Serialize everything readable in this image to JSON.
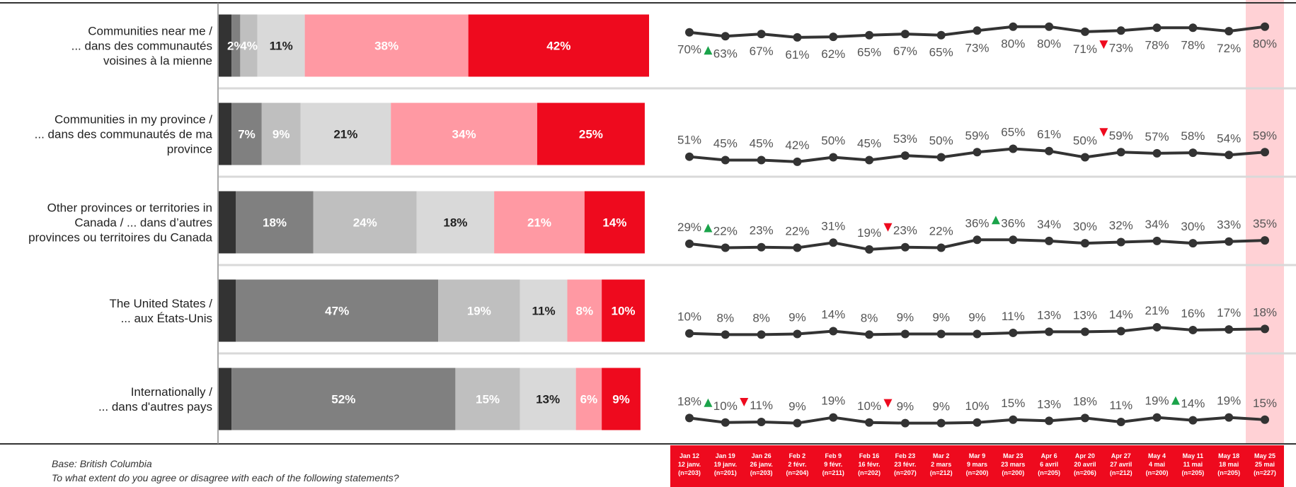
{
  "chart_data": [
    {
      "type": "bar",
      "stacked": true,
      "orientation": "horizontal",
      "xlim": [
        0,
        100
      ],
      "categories": [
        [
          "Communities near me /",
          "... dans des communautés",
          "voisines à la mienne"
        ],
        [
          "Communities in my province /",
          "... dans des communautés de ma",
          "province"
        ],
        [
          "Other provinces or territories in",
          "Canada / ... dans d’autres",
          "provinces ou territoires du Canada"
        ],
        [
          "The United States /",
          "... aux États-Unis"
        ],
        [
          "Internationally /",
          "... dans d'autres pays"
        ]
      ],
      "series": [
        {
          "color": "#333333",
          "label_color": "#ffffff",
          "values": [
            3,
            3,
            4,
            4,
            3
          ]
        },
        {
          "color": "#808080",
          "label_color": "#ffffff",
          "values": [
            2,
            7,
            18,
            47,
            52
          ]
        },
        {
          "color": "#bfbfbf",
          "label_color": "#ffffff",
          "values": [
            4,
            9,
            24,
            19,
            15
          ]
        },
        {
          "color": "#d9d9d9",
          "label_color": "#222222",
          "values": [
            11,
            21,
            18,
            11,
            13
          ]
        },
        {
          "color": "#ff99a3",
          "label_color": "#ffffff",
          "values": [
            38,
            34,
            21,
            8,
            6
          ]
        },
        {
          "color": "#ee0a1e",
          "label_color": "#ffffff",
          "values": [
            42,
            25,
            14,
            10,
            9
          ]
        }
      ],
      "labels": [
        [
          "",
          "2%",
          "4%",
          "11%",
          "38%",
          "42%"
        ],
        [
          "",
          "7%",
          "9%",
          "21%",
          "34%",
          "25%"
        ],
        [
          "",
          "18%",
          "24%",
          "18%",
          "21%",
          "14%"
        ],
        [
          "",
          "47%",
          "19%",
          "11%",
          "8%",
          "10%"
        ],
        [
          "",
          "52%",
          "15%",
          "13%",
          "6%",
          "9%"
        ]
      ]
    },
    {
      "type": "line",
      "x": [
        [
          "Jan 12",
          "12 janv.",
          "(n=203)"
        ],
        [
          "Jan 19",
          "19 janv.",
          "(n=201)"
        ],
        [
          "Jan 26",
          "26 janv.",
          "(n=203)"
        ],
        [
          "Feb 2",
          "2 févr.",
          "(n=204)"
        ],
        [
          "Feb 9",
          "9 févr.",
          "(n=211)"
        ],
        [
          "Feb 16",
          "16 févr.",
          "(n=202)"
        ],
        [
          "Feb 23",
          "23 févr.",
          "(n=207)"
        ],
        [
          "Mar 2",
          "2 mars",
          "(n=212)"
        ],
        [
          "Mar 9",
          "9 mars",
          "(n=200)"
        ],
        [
          "Mar 23",
          "23 mars",
          "(n=200)"
        ],
        [
          "Apr 6",
          "6 avril",
          "(n=205)"
        ],
        [
          "Apr 20",
          "20 avril",
          "(n=206)"
        ],
        [
          "Apr 27",
          "27 avril",
          "(n=212)"
        ],
        [
          "May 4",
          "4 mai",
          "(n=200)"
        ],
        [
          "May 11",
          "11 mai",
          "(n=205)"
        ],
        [
          "May 18",
          "18 mai",
          "(n=205)"
        ],
        [
          "May 25",
          "25 mai",
          "(n=227)"
        ]
      ],
      "series": [
        {
          "values": [
            70,
            63,
            67,
            61,
            62,
            65,
            67,
            65,
            73,
            80,
            80,
            71,
            73,
            78,
            78,
            72,
            80
          ],
          "labels": [
            "70%",
            "63%",
            "67%",
            "61%",
            "62%",
            "65%",
            "67%",
            "65%",
            "73%",
            "80%",
            "80%",
            "71%",
            "73%",
            "78%",
            "78%",
            "72%",
            "80%"
          ],
          "label_position": "below",
          "arrows": [
            {
              "index": 1,
              "dir": "up"
            },
            {
              "index": 12,
              "dir": "down"
            }
          ]
        },
        {
          "values": [
            51,
            45,
            45,
            42,
            50,
            45,
            53,
            50,
            59,
            65,
            61,
            50,
            59,
            57,
            58,
            54,
            59
          ],
          "labels": [
            "51%",
            "45%",
            "45%",
            "42%",
            "50%",
            "45%",
            "53%",
            "50%",
            "59%",
            "65%",
            "61%",
            "50%",
            "59%",
            "57%",
            "58%",
            "54%",
            "59%"
          ],
          "label_position": "above",
          "arrows": [
            {
              "index": 12,
              "dir": "down"
            }
          ]
        },
        {
          "values": [
            29,
            22,
            23,
            22,
            31,
            19,
            23,
            22,
            36,
            36,
            34,
            30,
            32,
            34,
            30,
            33,
            35
          ],
          "labels": [
            "29%",
            "22%",
            "23%",
            "22%",
            "31%",
            "19%",
            "23%",
            "22%",
            "36%",
            "36%",
            "34%",
            "30%",
            "32%",
            "34%",
            "30%",
            "33%",
            "35%"
          ],
          "label_position": "above",
          "arrows": [
            {
              "index": 1,
              "dir": "up"
            },
            {
              "index": 6,
              "dir": "down"
            },
            {
              "index": 9,
              "dir": "up"
            }
          ]
        },
        {
          "values": [
            10,
            8,
            8,
            9,
            14,
            8,
            9,
            9,
            9,
            11,
            13,
            13,
            14,
            21,
            16,
            17,
            18
          ],
          "labels": [
            "10%",
            "8%",
            "8%",
            "9%",
            "14%",
            "8%",
            "9%",
            "9%",
            "9%",
            "11%",
            "13%",
            "13%",
            "14%",
            "21%",
            "16%",
            "17%",
            "18%"
          ],
          "label_position": "above",
          "arrows": []
        },
        {
          "values": [
            18,
            10,
            11,
            9,
            19,
            10,
            9,
            9,
            10,
            15,
            13,
            18,
            11,
            19,
            14,
            19,
            15
          ],
          "labels": [
            "18%",
            "10%",
            "11%",
            "9%",
            "19%",
            "10%",
            "9%",
            "9%",
            "10%",
            "15%",
            "13%",
            "18%",
            "11%",
            "19%",
            "14%",
            "19%",
            "15%"
          ],
          "label_position": "above",
          "arrows": [
            {
              "index": 1,
              "dir": "up"
            },
            {
              "index": 2,
              "dir": "down"
            },
            {
              "index": 6,
              "dir": "down"
            },
            {
              "index": 14,
              "dir": "up"
            }
          ]
        }
      ],
      "highlight_last": true,
      "line_color": "#333333",
      "up_color": "#1aa34a",
      "down_color": "#ee0a1e"
    }
  ],
  "footnote": {
    "base": "Base: British Columbia",
    "question": "To what extent do you agree or disagree with each of the following statements?"
  },
  "colors": {
    "date_bar": "#ee0a1e",
    "highlight": "#ffd1d5",
    "separator": "#d9d9d9"
  }
}
